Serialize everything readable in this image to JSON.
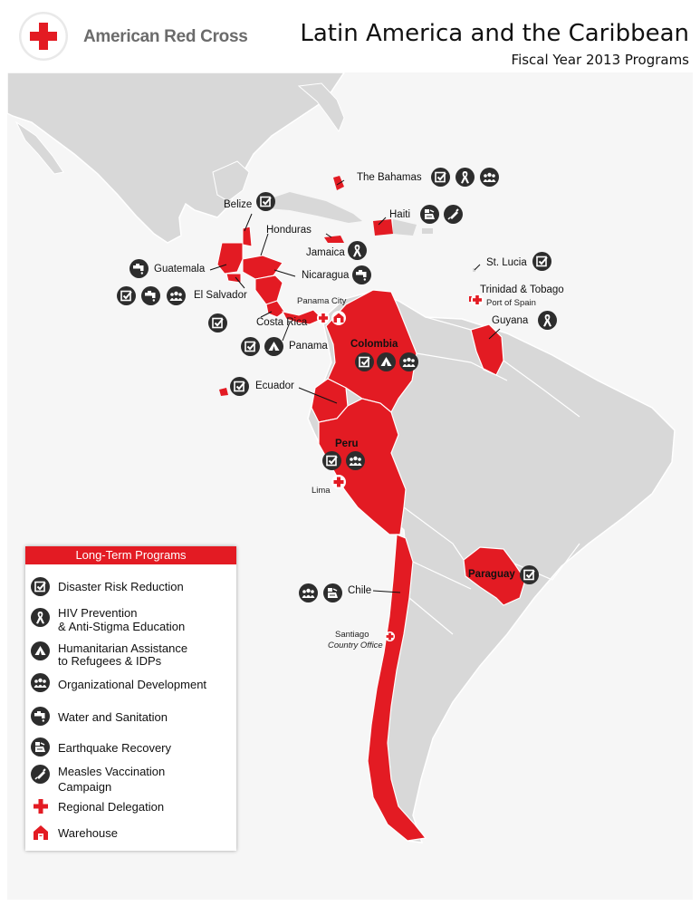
{
  "header": {
    "brand": "American Red Cross",
    "title": "Latin America and the Caribbean",
    "subtitle": "Fiscal Year 2013 Programs"
  },
  "colors": {
    "accent": "#e31b23",
    "land": "#d8d8d8",
    "icon_bg": "#2d2d2d",
    "sea": "#f6f6f6"
  },
  "countries": {
    "bahamas": "The Bahamas",
    "belize": "Belize",
    "haiti": "Haiti",
    "honduras": "Honduras",
    "jamaica": "Jamaica",
    "guatemala": "Guatemala",
    "nicaragua": "Nicaragua",
    "el_salvador": "El Salvador",
    "st_lucia": "St. Lucia",
    "trinidad": "Trinidad & Tobago",
    "costa_rica": "Costa Rica",
    "guyana": "Guyana",
    "panama": "Panama",
    "colombia": "Colombia",
    "ecuador": "Ecuador",
    "peru": "Peru",
    "paraguay": "Paraguay",
    "chile": "Chile"
  },
  "cities": {
    "panama_city": "Panama City",
    "port_of_spain": "Port of Spain",
    "lima": "Lima",
    "santiago": "Santiago",
    "country_office": "Country Office"
  },
  "legend": {
    "title": "Long-Term Programs",
    "items": [
      {
        "icon": "checkbox-icon",
        "label": "Disaster Risk Reduction"
      },
      {
        "icon": "ribbon-icon",
        "label": "HIV Prevention",
        "label2": "& Anti-Stigma Education"
      },
      {
        "icon": "tent-icon",
        "label": "Humanitarian Assistance",
        "label2": "to Refugees & IDPs"
      },
      {
        "icon": "people-icon",
        "label": "Organizational Development"
      },
      {
        "icon": "faucet-icon",
        "label": "Water and Sanitation"
      },
      {
        "icon": "rubble-icon",
        "label": "Earthquake Recovery"
      },
      {
        "icon": "syringe-icon",
        "label": "Measles Vaccination",
        "label2": "Campaign"
      },
      {
        "icon": "red-cross-icon",
        "label": "Regional Delegation"
      },
      {
        "icon": "warehouse-icon",
        "label": "Warehouse"
      }
    ]
  }
}
